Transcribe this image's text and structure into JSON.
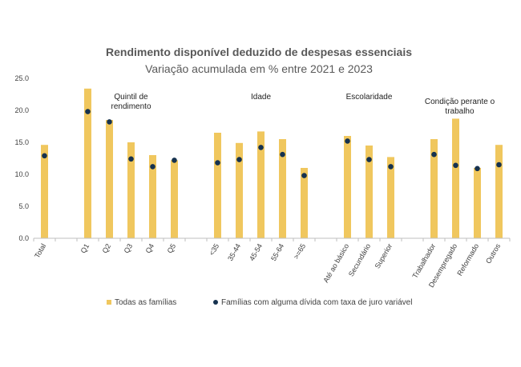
{
  "chart_data": {
    "type": "bar",
    "title": "Rendimento disponível deduzido de despesas essenciais",
    "subtitle": "Variação acumulada em % entre 2021 e 2023",
    "xlabel": "",
    "ylabel": "",
    "ylim": [
      0,
      25
    ],
    "yticks": [
      "0.0",
      "5.0",
      "10.0",
      "15.0",
      "20.0",
      "25.0"
    ],
    "grid": false,
    "legend_position": "bottom",
    "colors": {
      "bar": "#f0c75e",
      "dot": "#16324f",
      "axis": "#bfbfbf"
    },
    "categories": [
      "Total",
      "",
      "Q1",
      "Q2",
      "Q3",
      "Q4",
      "Q5",
      "",
      "<35",
      "35-44",
      "45-54",
      "55-64",
      ">=65",
      "",
      "Até ao básico",
      "Secundário",
      "Superior",
      "",
      "Trabalhador",
      "Desempregado",
      "Reformado",
      "Outros"
    ],
    "groups": [
      {
        "label_lines": [
          "Quintil de",
          "rendimento"
        ]
      },
      {
        "label_lines": [
          "Idade"
        ]
      },
      {
        "label_lines": [
          "Escolaridade"
        ]
      },
      {
        "label_lines": [
          "Condição perante o",
          "trabalho"
        ]
      }
    ],
    "series": [
      {
        "name": "Todas as famílias",
        "type": "bar",
        "values": [
          14.6,
          null,
          23.4,
          18.5,
          15.0,
          13.0,
          12.2,
          null,
          16.5,
          14.9,
          16.7,
          15.5,
          11.0,
          null,
          16.0,
          14.5,
          12.7,
          null,
          15.5,
          18.7,
          11.0,
          14.6
        ]
      },
      {
        "name": "Famílias com alguma dívida com taxa de juro variável",
        "type": "scatter",
        "values": [
          12.9,
          null,
          19.8,
          18.2,
          12.4,
          11.2,
          12.2,
          null,
          11.8,
          12.3,
          14.2,
          13.1,
          9.8,
          null,
          15.2,
          12.3,
          11.2,
          null,
          13.1,
          11.4,
          10.9,
          11.5
        ]
      }
    ]
  }
}
